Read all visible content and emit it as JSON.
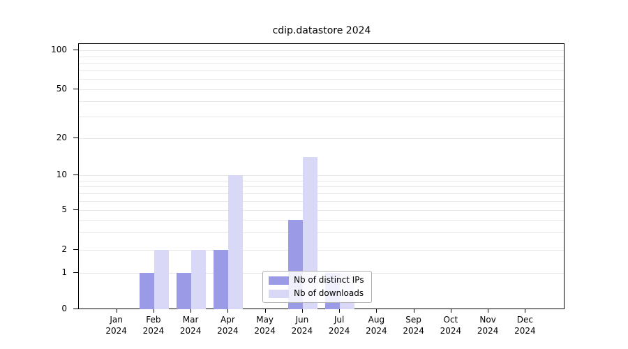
{
  "chart_data": {
    "type": "bar",
    "title": "cdip.datastore 2024",
    "categories": [
      "Jan",
      "Feb",
      "Mar",
      "Apr",
      "May",
      "Jun",
      "Jul",
      "Aug",
      "Sep",
      "Oct",
      "Nov",
      "Dec"
    ],
    "category_year": "2024",
    "series": [
      {
        "name": "Nb of distinct IPs",
        "color": "#9a9ae6",
        "values": [
          null,
          1,
          1,
          2,
          null,
          4,
          1,
          null,
          null,
          null,
          null,
          null
        ]
      },
      {
        "name": "Nb of downloads",
        "color": "#d9d9f7",
        "values": [
          null,
          2,
          2,
          10,
          null,
          14,
          1,
          null,
          null,
          null,
          null,
          null
        ]
      }
    ],
    "y_ticks": [
      0,
      1,
      2,
      5,
      10,
      20,
      50,
      100
    ],
    "y_minor_gridlines": [
      3,
      4,
      6,
      7,
      8,
      9,
      30,
      40,
      60,
      70,
      80,
      90
    ],
    "ylim": [
      0,
      110
    ],
    "scale": "log-with-zero",
    "grid": "horizontal",
    "gridline_color": "#e7e7e7",
    "legend_position": "lower center"
  }
}
